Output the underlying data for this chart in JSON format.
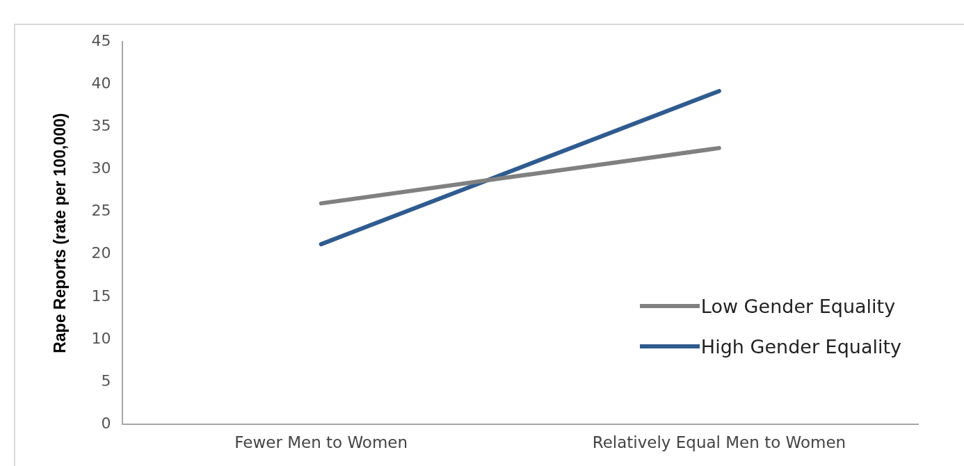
{
  "chart_data": {
    "type": "line",
    "ylabel": "Rape Reports (rate per 100,000)",
    "categories": [
      "Fewer Men to Women",
      "Relatively Equal Men to Women"
    ],
    "series": [
      {
        "name": "Low Gender Equality",
        "color": "#808080",
        "values": [
          26,
          32.5
        ]
      },
      {
        "name": "High Gender Equality",
        "color": "#2f5b8f",
        "values": [
          21.2,
          39.2
        ]
      }
    ],
    "ylim": [
      0,
      45
    ],
    "yticks": [
      0,
      5,
      10,
      15,
      20,
      25,
      30,
      35,
      40,
      45
    ],
    "grid": false,
    "legend": "bottom right",
    "marker": "none",
    "line_style": "solid"
  }
}
